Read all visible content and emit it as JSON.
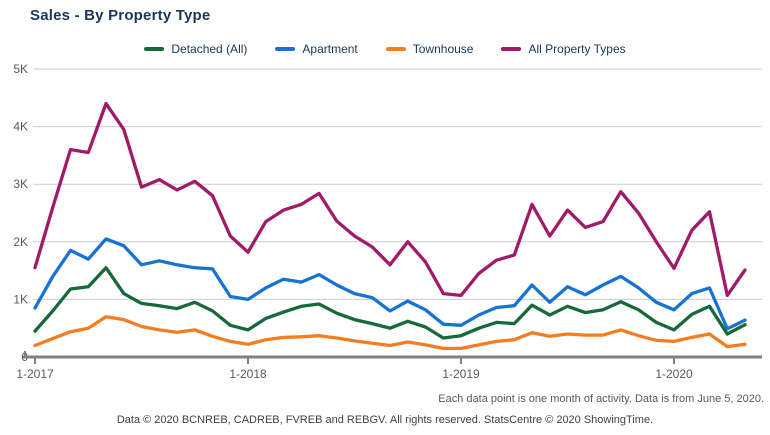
{
  "title": "Sales - By Property Type",
  "legend": [
    {
      "label": "Detached (All)",
      "color": "#17683B"
    },
    {
      "label": "Apartment",
      "color": "#1673D2"
    },
    {
      "label": "Townhouse",
      "color": "#F57D1F"
    },
    {
      "label": "All Property Types",
      "color": "#A01A68"
    }
  ],
  "chart_data": {
    "type": "line",
    "title": "Sales - By Property Type",
    "xlabel": "",
    "ylabel": "",
    "ylim": [
      0,
      5000
    ],
    "grid": true,
    "legend_position": "top",
    "categories": [
      "2017-01",
      "2017-02",
      "2017-03",
      "2017-04",
      "2017-05",
      "2017-06",
      "2017-07",
      "2017-08",
      "2017-09",
      "2017-10",
      "2017-11",
      "2017-12",
      "2018-01",
      "2018-02",
      "2018-03",
      "2018-04",
      "2018-05",
      "2018-06",
      "2018-07",
      "2018-08",
      "2018-09",
      "2018-10",
      "2018-11",
      "2018-12",
      "2019-01",
      "2019-02",
      "2019-03",
      "2019-04",
      "2019-05",
      "2019-06",
      "2019-07",
      "2019-08",
      "2019-09",
      "2019-10",
      "2019-11",
      "2019-12",
      "2020-01",
      "2020-02",
      "2020-03",
      "2020-04",
      "2020-05"
    ],
    "x_ticks": [
      {
        "index": 0,
        "label": "1-2017"
      },
      {
        "index": 12,
        "label": "1-2018"
      },
      {
        "index": 24,
        "label": "1-2019"
      },
      {
        "index": 36,
        "label": "1-2020"
      }
    ],
    "y_ticks": [
      {
        "value": 0,
        "label": "0"
      },
      {
        "value": 1000,
        "label": "1K"
      },
      {
        "value": 2000,
        "label": "2K"
      },
      {
        "value": 3000,
        "label": "3K"
      },
      {
        "value": 4000,
        "label": "4K"
      },
      {
        "value": 5000,
        "label": "5K"
      }
    ],
    "series": [
      {
        "name": "Detached (All)",
        "color": "#17683B",
        "values": [
          450,
          800,
          1180,
          1220,
          1550,
          1100,
          930,
          890,
          840,
          950,
          800,
          550,
          470,
          670,
          780,
          880,
          920,
          760,
          650,
          580,
          500,
          620,
          520,
          330,
          370,
          500,
          600,
          580,
          900,
          730,
          880,
          770,
          820,
          960,
          820,
          600,
          470,
          740,
          880,
          400,
          560
        ]
      },
      {
        "name": "Apartment",
        "color": "#1673D2",
        "values": [
          850,
          1400,
          1850,
          1700,
          2050,
          1930,
          1600,
          1670,
          1600,
          1550,
          1530,
          1050,
          1000,
          1200,
          1350,
          1300,
          1430,
          1250,
          1100,
          1030,
          800,
          970,
          820,
          570,
          550,
          730,
          860,
          890,
          1250,
          950,
          1220,
          1080,
          1250,
          1400,
          1200,
          950,
          820,
          1100,
          1200,
          490,
          640
        ]
      },
      {
        "name": "Townhouse",
        "color": "#F57D1F",
        "values": [
          200,
          320,
          440,
          500,
          700,
          650,
          530,
          470,
          430,
          470,
          360,
          270,
          220,
          300,
          340,
          350,
          370,
          330,
          280,
          240,
          200,
          260,
          210,
          150,
          150,
          210,
          270,
          300,
          420,
          360,
          400,
          380,
          380,
          470,
          370,
          290,
          270,
          340,
          400,
          180,
          220
        ]
      },
      {
        "name": "All Property Types",
        "color": "#A01A68",
        "values": [
          1550,
          2600,
          3600,
          3550,
          4400,
          3950,
          2950,
          3080,
          2900,
          3050,
          2800,
          2100,
          1820,
          2350,
          2550,
          2650,
          2840,
          2360,
          2100,
          1910,
          1600,
          2000,
          1650,
          1100,
          1070,
          1450,
          1680,
          1770,
          2650,
          2100,
          2550,
          2250,
          2350,
          2870,
          2500,
          2000,
          1540,
          2200,
          2520,
          1070,
          1510
        ]
      }
    ],
    "colors": {
      "grid": "#CCCCCC",
      "axis": "#808080",
      "tick_label": "#595959"
    }
  },
  "footnote_right": "Each data point is one month of activity. Data is from June 5, 2020.",
  "footnote_center": "Data © 2020 BCNREB, CADREB, FVREB and REBGV. All rights reserved. StatsCentre © 2020 ShowingTime."
}
